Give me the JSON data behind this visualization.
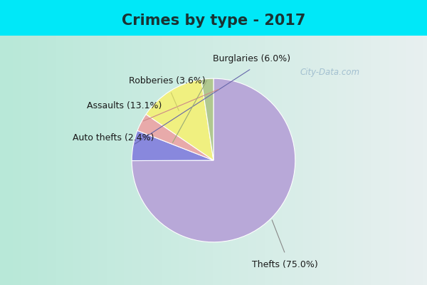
{
  "title": "Crimes by type - 2017",
  "title_fontsize": 15,
  "title_color": "#1a3333",
  "slices": [
    {
      "label": "Thefts",
      "pct": 75.0,
      "color": "#b8a8d8"
    },
    {
      "label": "Burglaries",
      "pct": 6.0,
      "color": "#8888dd"
    },
    {
      "label": "Robberies",
      "pct": 3.6,
      "color": "#e8aaaa"
    },
    {
      "label": "Assaults",
      "pct": 13.1,
      "color": "#f0f080"
    },
    {
      "label": "Auto thefts",
      "pct": 2.4,
      "color": "#b0c890"
    }
  ],
  "background_top_color": "#00e8f8",
  "background_grad_left": "#b8e8d8",
  "background_grad_right": "#e8f0f0",
  "watermark": "City-Data.com",
  "label_fontsize": 9,
  "label_color": "#1a1a1a"
}
